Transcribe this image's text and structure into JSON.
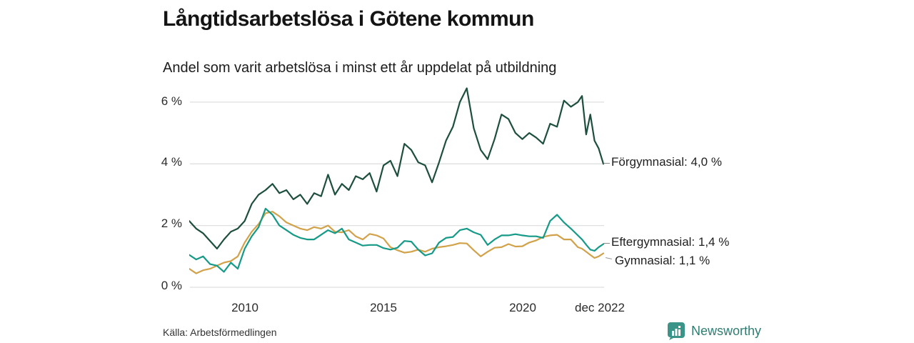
{
  "header": {
    "title": "Långtidsarbetslösa i Götene kommun",
    "subtitle": "Andel som varit arbetslösa i minst ett år uppdelat på utbildning"
  },
  "footer": {
    "source": "Källa: Arbetsförmedlingen",
    "brand": "Newsworthy",
    "brand_icon": "bar-chart-speech-bubble-icon",
    "brand_color": "#3b9488",
    "brand_text_color": "#2f7d72"
  },
  "chart_data": {
    "type": "line",
    "title": "Långtidsarbetslösa i Götene kommun",
    "subtitle": "Andel som varit arbetslösa i minst ett år uppdelat på utbildning",
    "xlabel": "",
    "ylabel": "",
    "grid": "horizontal",
    "legend_position": "end-of-line-labels",
    "xlim": [
      2008.0,
      2022.92
    ],
    "ylim": [
      0,
      6.53
    ],
    "x_tick_labels": [
      "2010",
      "2015",
      "2020",
      "dec 2022"
    ],
    "x_tick_values": [
      2010,
      2015,
      2020,
      2022.92
    ],
    "y_tick_labels": [
      "0 %",
      "2 %",
      "4 %",
      "6 %"
    ],
    "y_gridlines": [
      0,
      2,
      4,
      6
    ],
    "gridline_color": "#dfdfdf",
    "x": [
      2008.0,
      2008.25,
      2008.5,
      2008.75,
      2009.0,
      2009.25,
      2009.5,
      2009.75,
      2010.0,
      2010.25,
      2010.5,
      2010.75,
      2011.0,
      2011.25,
      2011.5,
      2011.75,
      2012.0,
      2012.25,
      2012.5,
      2012.75,
      2013.0,
      2013.25,
      2013.5,
      2013.75,
      2014.0,
      2014.25,
      2014.5,
      2014.75,
      2015.0,
      2015.25,
      2015.5,
      2015.75,
      2016.0,
      2016.25,
      2016.5,
      2016.75,
      2017.0,
      2017.25,
      2017.5,
      2017.75,
      2018.0,
      2018.25,
      2018.5,
      2018.75,
      2019.0,
      2019.25,
      2019.5,
      2019.75,
      2020.0,
      2020.25,
      2020.5,
      2020.75,
      2021.0,
      2021.25,
      2021.5,
      2021.75,
      2022.0,
      2022.15,
      2022.3,
      2022.45,
      2022.6,
      2022.75,
      2022.92
    ],
    "series": [
      {
        "name": "Förgymnasial",
        "end_label": "Förgymnasial: 4,0 %",
        "end_value": 4.0,
        "color": "#1d4f3f",
        "values": [
          2.15,
          1.9,
          1.75,
          1.5,
          1.25,
          1.55,
          1.8,
          1.9,
          2.15,
          2.7,
          3.0,
          3.15,
          3.35,
          3.05,
          3.15,
          2.85,
          3.0,
          2.7,
          3.05,
          2.95,
          3.65,
          3.0,
          3.35,
          3.15,
          3.6,
          3.5,
          3.7,
          3.1,
          3.95,
          4.1,
          3.6,
          4.65,
          4.45,
          4.05,
          3.95,
          3.4,
          4.05,
          4.75,
          5.2,
          6.0,
          6.45,
          5.15,
          4.45,
          4.15,
          4.8,
          5.6,
          5.45,
          5.0,
          4.8,
          5.0,
          4.85,
          4.65,
          5.3,
          5.2,
          6.05,
          5.85,
          6.0,
          6.2,
          4.95,
          5.6,
          4.75,
          4.5,
          4.0
        ]
      },
      {
        "name": "Eftergymnasial",
        "end_label": "Eftergymnasial: 1,4 %",
        "end_value": 1.4,
        "color": "#159a88",
        "values": [
          1.05,
          0.9,
          1.0,
          0.75,
          0.7,
          0.5,
          0.8,
          0.6,
          1.25,
          1.65,
          1.95,
          2.55,
          2.35,
          2.0,
          1.85,
          1.7,
          1.6,
          1.55,
          1.55,
          1.7,
          1.85,
          1.75,
          1.9,
          1.55,
          1.45,
          1.35,
          1.37,
          1.37,
          1.27,
          1.22,
          1.28,
          1.5,
          1.48,
          1.22,
          1.03,
          1.1,
          1.45,
          1.6,
          1.63,
          1.85,
          1.9,
          1.78,
          1.7,
          1.37,
          1.55,
          1.68,
          1.68,
          1.72,
          1.68,
          1.65,
          1.65,
          1.6,
          2.15,
          2.35,
          2.1,
          1.9,
          1.68,
          1.55,
          1.38,
          1.22,
          1.18,
          1.3,
          1.4
        ]
      },
      {
        "name": "Gymnasial",
        "end_label": "Gymnasial: 1,1 %",
        "end_value": 1.1,
        "color": "#d2a24a",
        "values": [
          0.6,
          0.45,
          0.55,
          0.6,
          0.7,
          0.8,
          0.85,
          1.0,
          1.45,
          1.8,
          2.05,
          2.4,
          2.45,
          2.3,
          2.1,
          2.0,
          1.9,
          1.85,
          1.95,
          1.9,
          2.0,
          1.8,
          1.78,
          1.85,
          1.65,
          1.55,
          1.73,
          1.68,
          1.58,
          1.3,
          1.2,
          1.12,
          1.15,
          1.22,
          1.15,
          1.25,
          1.3,
          1.33,
          1.37,
          1.43,
          1.42,
          1.2,
          1.0,
          1.15,
          1.28,
          1.3,
          1.4,
          1.32,
          1.33,
          1.45,
          1.52,
          1.63,
          1.68,
          1.7,
          1.55,
          1.55,
          1.3,
          1.25,
          1.15,
          1.05,
          0.95,
          1.0,
          1.1
        ]
      }
    ]
  }
}
